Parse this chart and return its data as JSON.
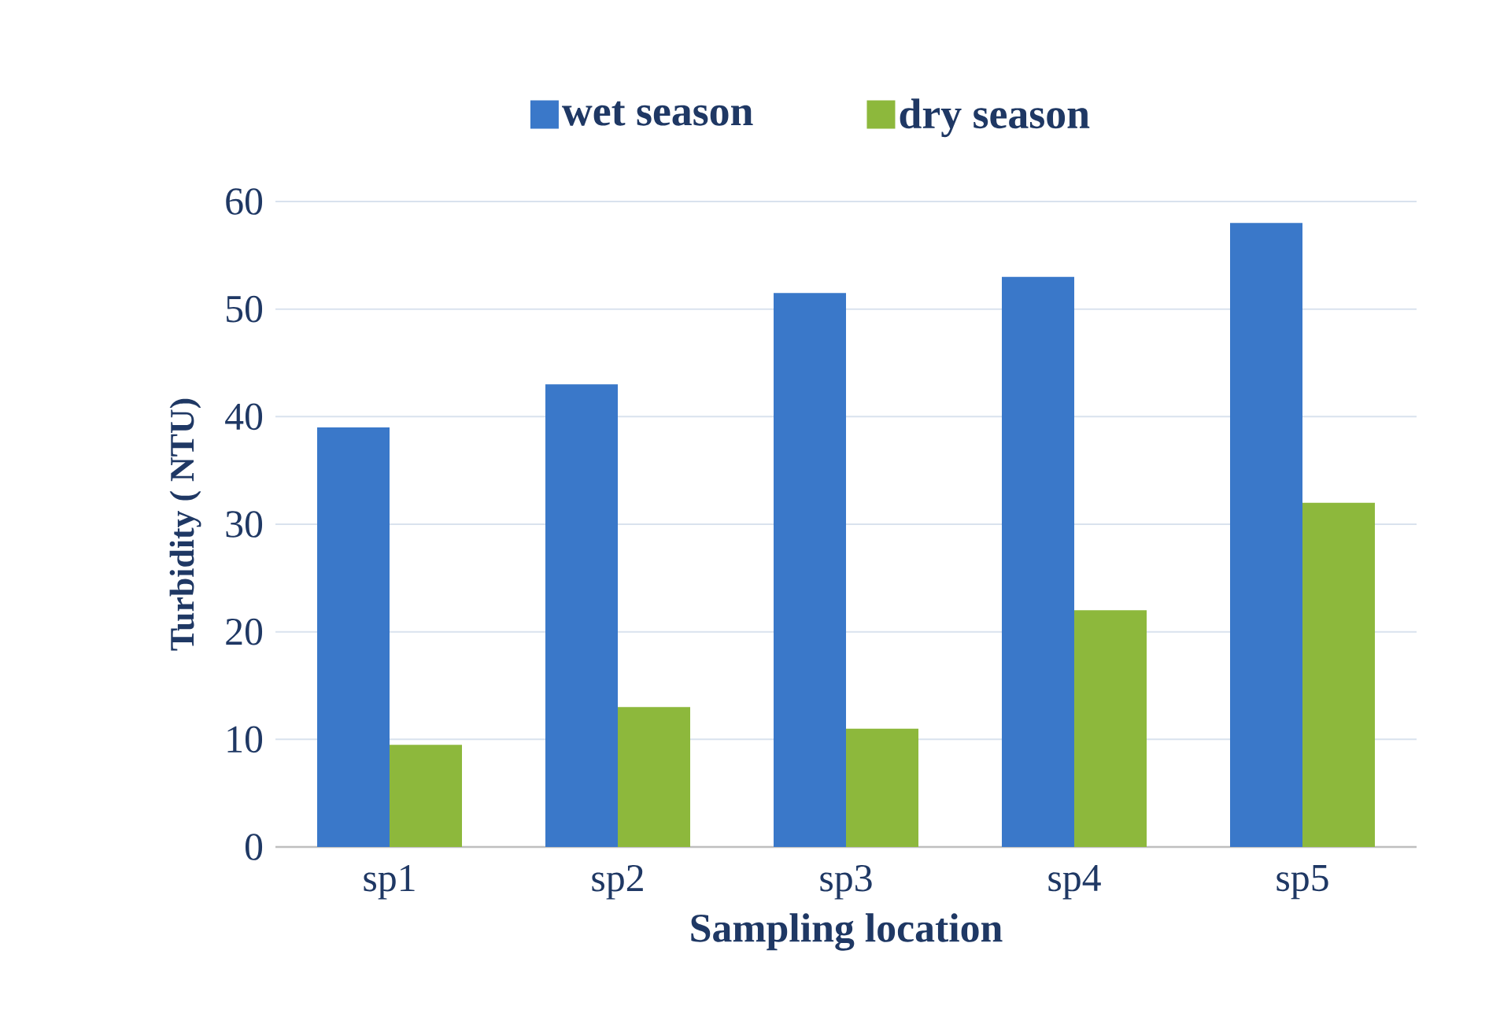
{
  "chart_data": {
    "type": "bar",
    "xlabel": "Sampling location",
    "ylabel": "Turbidity ( NTU)",
    "categories": [
      "sp1",
      "sp2",
      "sp3",
      "sp4",
      "sp5"
    ],
    "series": [
      {
        "name": "wet season",
        "color": "#3a78c9",
        "values": [
          39,
          43,
          51.5,
          53,
          58
        ]
      },
      {
        "name": "dry season",
        "color": "#8db83c",
        "values": [
          9.5,
          13,
          11,
          22,
          32
        ]
      }
    ],
    "ylim": [
      0,
      60
    ],
    "yticks": [
      0,
      10,
      20,
      30,
      40,
      50,
      60
    ],
    "grid": "y",
    "legend": "top"
  }
}
